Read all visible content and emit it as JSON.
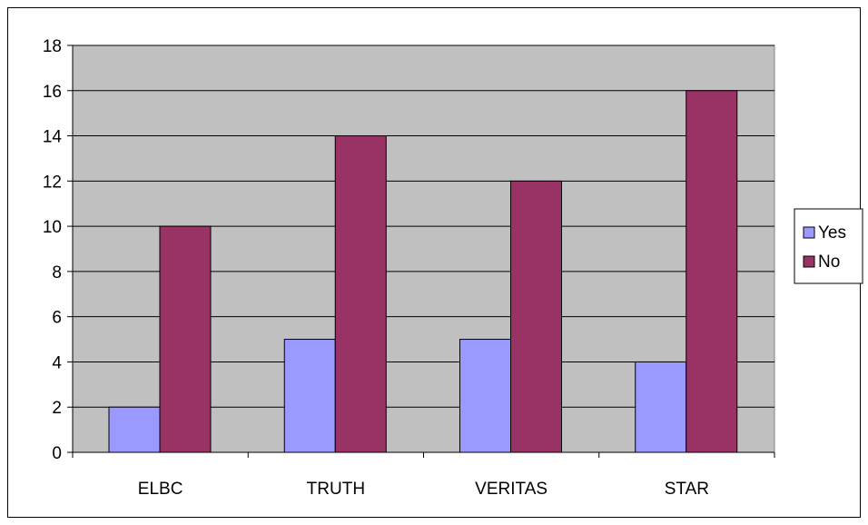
{
  "chart_data": {
    "type": "bar",
    "categories": [
      "ELBC",
      "TRUTH",
      "VERITAS",
      "STAR"
    ],
    "series": [
      {
        "name": "Yes",
        "values": [
          2,
          5,
          5,
          4
        ]
      },
      {
        "name": "No",
        "values": [
          10,
          14,
          12,
          16
        ]
      }
    ],
    "ylim": [
      0,
      18
    ],
    "yticks": [
      "0",
      "2",
      "4",
      "6",
      "8",
      "10",
      "12",
      "14",
      "16",
      "18"
    ],
    "grid": true,
    "legend_position": "right",
    "colors": {
      "plot_background": "#c0c0c0",
      "series": [
        "#9999ff",
        "#993366"
      ],
      "axis": "#000000"
    }
  }
}
